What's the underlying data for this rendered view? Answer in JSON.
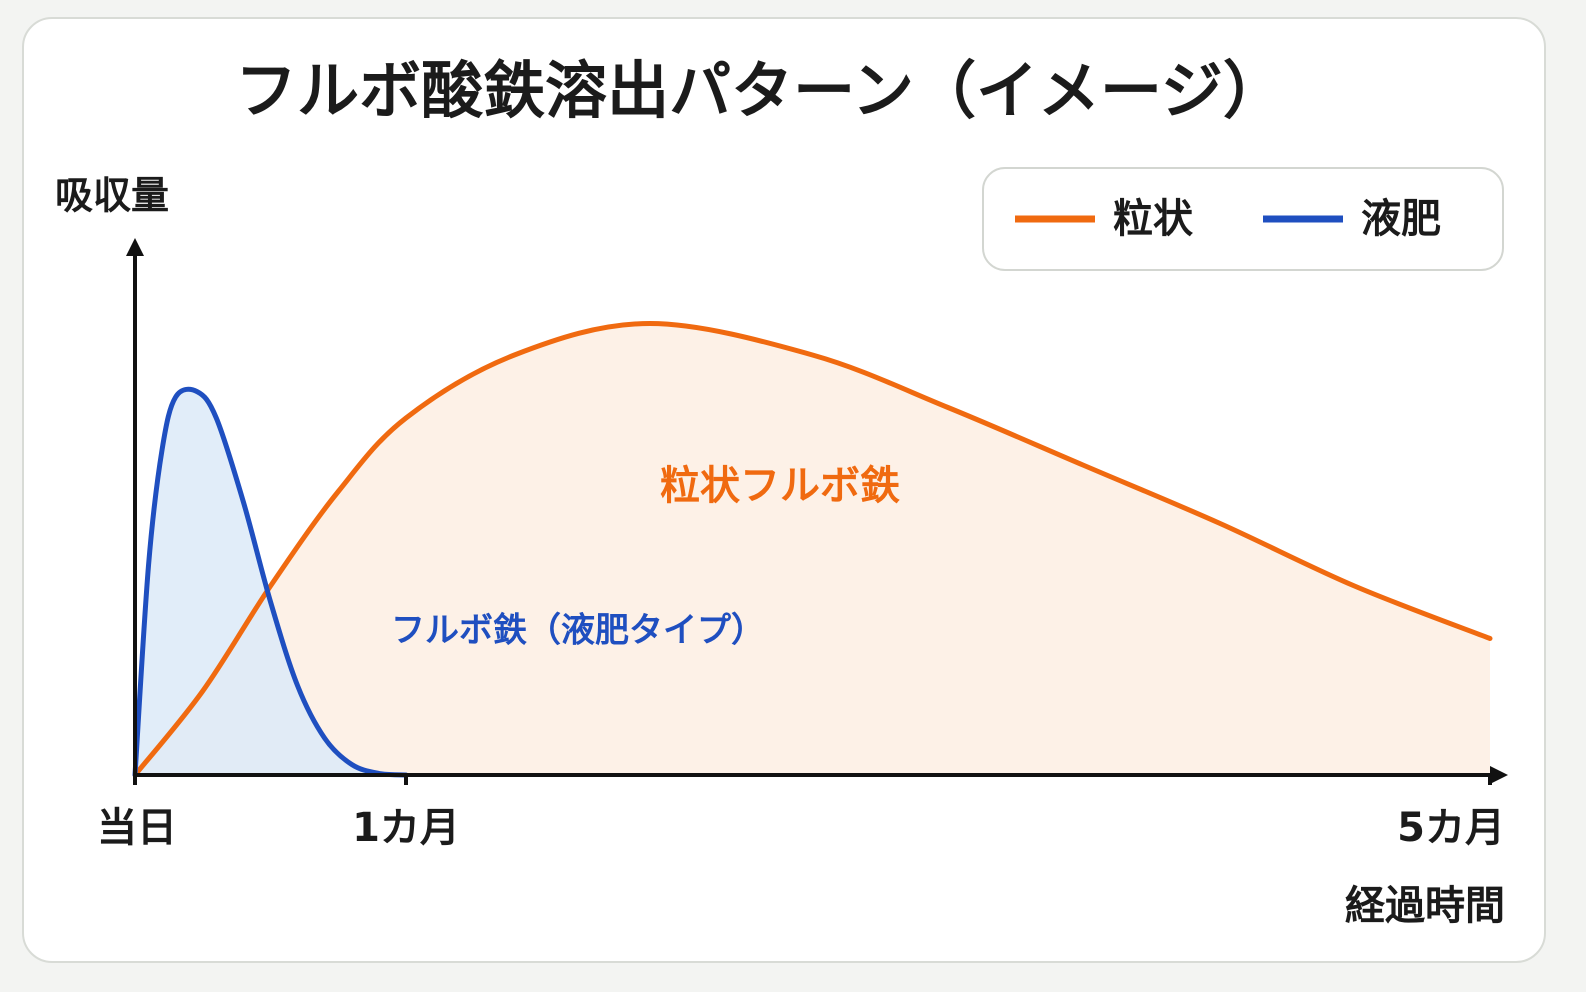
{
  "chart_data": {
    "type": "line",
    "title": "フルボ酸鉄溶出パターン（イメージ）",
    "y_label": "吸収量",
    "x_label": "経過時間",
    "xlim": [
      0,
      5
    ],
    "xticks": [
      {
        "value": 0,
        "label": "当日"
      },
      {
        "value": 1,
        "label": "1カ月"
      },
      {
        "value": 5,
        "label": "5カ月"
      }
    ],
    "ylim": [
      0,
      100
    ],
    "series": [
      {
        "name": "粒状",
        "color": "#f06a10",
        "fill": "#fdeee3",
        "x": [
          0,
          0.25,
          0.5,
          0.75,
          1,
          1.4,
          1.9,
          2.5,
          3,
          3.5,
          4,
          4.5,
          5
        ],
        "values": [
          0,
          16,
          36,
          54,
          68,
          80,
          86,
          80,
          70,
          59,
          48,
          36,
          26
        ]
      },
      {
        "name": "液肥",
        "color": "#1f4fc0",
        "fill": "#dceaf8",
        "x": [
          0,
          0.05,
          0.1,
          0.15,
          0.23,
          0.3,
          0.4,
          0.5,
          0.6,
          0.7,
          0.8,
          0.9,
          1
        ],
        "values": [
          0,
          40,
          62,
          72,
          73,
          68,
          52,
          33,
          17,
          7,
          2,
          0.3,
          0
        ]
      }
    ],
    "annotations": [
      {
        "text": "粒状フルボ鉄",
        "color": "#f06a10"
      },
      {
        "text": "フルボ鉄（液肥タイプ）",
        "color": "#1f4fc0"
      }
    ],
    "legend": "top-right"
  }
}
